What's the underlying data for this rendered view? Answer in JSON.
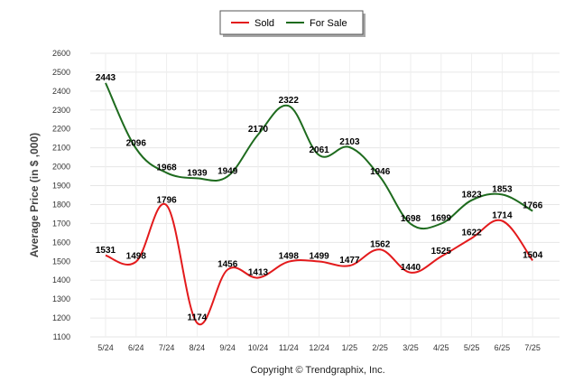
{
  "chart_data": {
    "type": "line",
    "categories": [
      "5/24",
      "6/24",
      "7/24",
      "8/24",
      "9/24",
      "10/24",
      "11/24",
      "12/24",
      "1/25",
      "2/25",
      "3/25",
      "4/25",
      "5/25",
      "6/25",
      "7/25"
    ],
    "series": [
      {
        "name": "Sold",
        "color": "#e31a1c",
        "values": [
          1531,
          1498,
          1796,
          1174,
          1456,
          1413,
          1498,
          1499,
          1477,
          1562,
          1440,
          1525,
          1622,
          1714,
          1504
        ]
      },
      {
        "name": "For Sale",
        "color": "#1e6b1e",
        "values": [
          2443,
          2096,
          1968,
          1939,
          1949,
          2170,
          2322,
          2061,
          2103,
          1946,
          1698,
          1699,
          1823,
          1853,
          1766
        ]
      }
    ],
    "y_ticks": [
      "1100",
      "1200",
      "1300",
      "1400",
      "1500",
      "1600",
      "1700",
      "1800",
      "1900",
      "2000",
      "2100",
      "2200",
      "2300",
      "2400",
      "2500",
      "2600"
    ],
    "ylim": [
      1100,
      2600
    ],
    "ylabel": "Average Price (in $ ,000)",
    "xlabel": "",
    "grid": true,
    "legend_position": "top-center",
    "footer": "Copyright © Trendgraphix, Inc."
  }
}
